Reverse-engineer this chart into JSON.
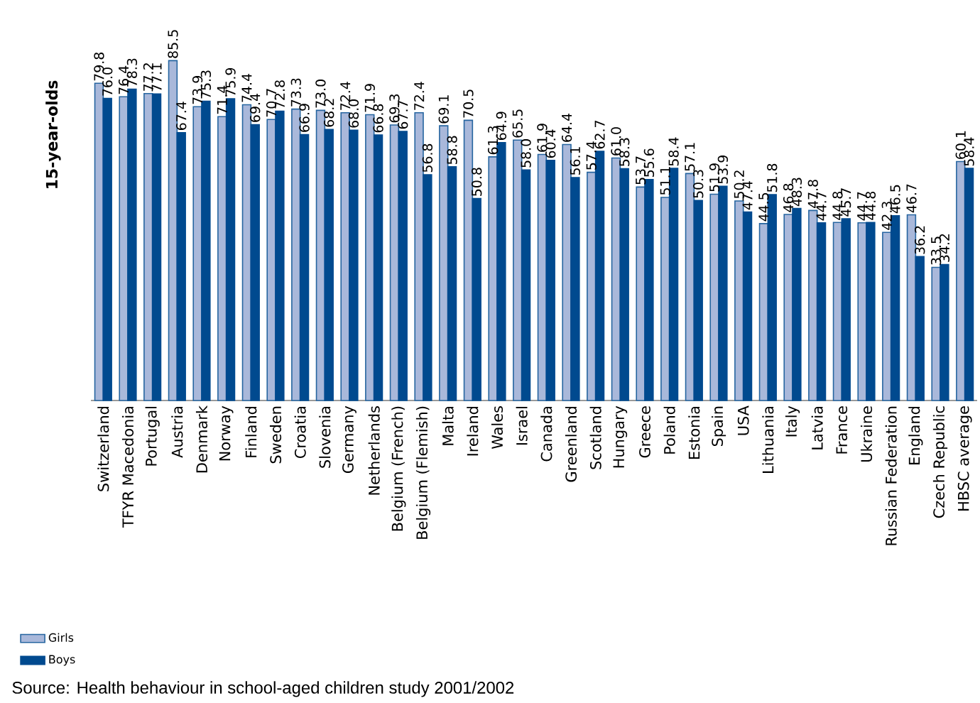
{
  "chart_data": {
    "type": "bar",
    "ylabel": "15-year-olds",
    "categories": [
      "Switzerland",
      "TFYR Macedonia",
      "Portugal",
      "Austria",
      "Denmark",
      "Norway",
      "Finland",
      "Sweden",
      "Croatia",
      "Slovenia",
      "Germany",
      "Netherlands",
      "Belgium (French)",
      "Belgium (Flemish)",
      "Malta",
      "Ireland",
      "Wales",
      "Israel",
      "Canada",
      "Greenland",
      "Scotland",
      "Hungary",
      "Greece",
      "Poland",
      "Estonia",
      "Spain",
      "USA",
      "Lithuania",
      "Italy",
      "Latvia",
      "France",
      "Ukraine",
      "Russian Federation",
      "England",
      "Czech Republic",
      "HBSC average"
    ],
    "series": [
      {
        "name": "Girls",
        "color": "#a9b8da",
        "values": [
          79.8,
          76.4,
          77.2,
          85.5,
          73.9,
          71.4,
          74.4,
          70.7,
          73.3,
          73.0,
          72.4,
          71.9,
          69.3,
          72.4,
          69.1,
          70.5,
          61.3,
          65.5,
          61.9,
          64.4,
          57.4,
          61.0,
          53.7,
          51.1,
          57.1,
          51.9,
          50.2,
          44.5,
          46.8,
          47.8,
          44.8,
          44.7,
          42.3,
          46.7,
          33.5,
          60.1
        ],
        "value_labels": [
          "79.8",
          "76.4",
          "77.2",
          "85.5",
          "73.9",
          "71.4",
          "74.4",
          "70.7",
          "73.3",
          "73.0",
          "72.4",
          "71.9",
          "69.3",
          "72.4",
          "69.1",
          "70.5",
          "61.3",
          "65.5",
          "61.9",
          "64.4",
          "57.4",
          "61.0",
          "53.7",
          "51.1",
          "57.1",
          "51.9",
          "50.2",
          "44.5",
          "46.8",
          "47.8",
          "44.8",
          "44.7",
          "42.3",
          "46.7",
          "33.5",
          "60.1"
        ]
      },
      {
        "name": "Boys",
        "color": "#004a8f",
        "values": [
          76.0,
          78.3,
          77.1,
          67.4,
          75.3,
          75.9,
          69.4,
          72.8,
          66.9,
          68.2,
          68.0,
          66.8,
          67.7,
          56.8,
          58.8,
          50.8,
          64.9,
          58.0,
          60.4,
          56.1,
          62.7,
          58.3,
          55.6,
          58.4,
          50.3,
          53.9,
          47.4,
          51.8,
          48.3,
          44.7,
          45.7,
          44.8,
          46.5,
          36.2,
          34.2,
          58.4
        ],
        "value_labels": [
          "76.0",
          "78.3",
          "77.1",
          "67.4",
          "75.3",
          "75.9",
          "69.4",
          "72.8",
          "66.9",
          "68.2",
          "68.0",
          "66.8",
          "67.7",
          "56.8",
          "58.8",
          "50.8",
          "64.9",
          "58.0",
          "60.4",
          "56.1",
          "62.7",
          "58.3",
          "55.6",
          "58.4",
          "50.3",
          "53.9",
          "47.4",
          "51.8",
          "48.3",
          "44.7",
          "45.7",
          "44.8",
          "46.5",
          "36.2",
          "34.2",
          "58.4"
        ]
      }
    ],
    "legend": "bottom left",
    "annotations": [
      "Source: Health behaviour in school-aged children study 2001/2002"
    ]
  }
}
